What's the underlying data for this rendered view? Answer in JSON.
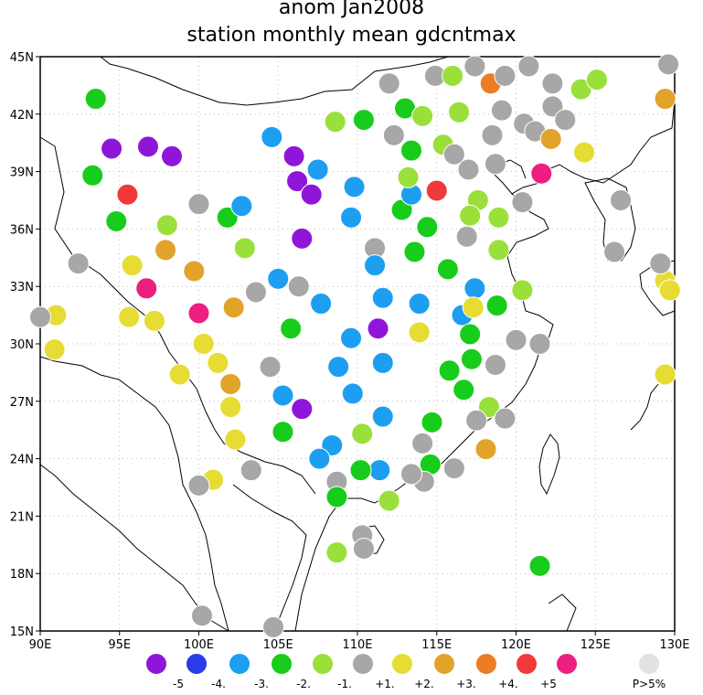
{
  "title": "anom Jan2008",
  "subtitle": "station monthly mean gdcntmax",
  "map": {
    "lon_range": [
      90,
      130
    ],
    "lat_range": [
      15,
      45
    ],
    "x_ticks": [
      {
        "value": 90,
        "label": "90E"
      },
      {
        "value": 95,
        "label": "95E"
      },
      {
        "value": 100,
        "label": "100E"
      },
      {
        "value": 105,
        "label": "105E"
      },
      {
        "value": 110,
        "label": "110E"
      },
      {
        "value": 115,
        "label": "115E"
      },
      {
        "value": 120,
        "label": "120E"
      },
      {
        "value": 125,
        "label": "125E"
      },
      {
        "value": 130,
        "label": "130E"
      }
    ],
    "y_ticks": [
      {
        "value": 15,
        "label": "15N"
      },
      {
        "value": 18,
        "label": "18N"
      },
      {
        "value": 21,
        "label": "21N"
      },
      {
        "value": 24,
        "label": "24N"
      },
      {
        "value": 27,
        "label": "27N"
      },
      {
        "value": 30,
        "label": "30N"
      },
      {
        "value": 33,
        "label": "33N"
      },
      {
        "value": 36,
        "label": "36N"
      },
      {
        "value": 39,
        "label": "39N"
      },
      {
        "value": 42,
        "label": "42N"
      },
      {
        "value": 45,
        "label": "45N"
      }
    ],
    "grid": "dotted"
  },
  "legend": [
    {
      "key": "m5",
      "color": "#8f16d8",
      "label": "-5"
    },
    {
      "key": "m4",
      "color": "#2a3be8",
      "label": "-4."
    },
    {
      "key": "m3",
      "color": "#1e9ef0",
      "label": "-3."
    },
    {
      "key": "m2",
      "color": "#18cc1c",
      "label": "-2."
    },
    {
      "key": "m1",
      "color": "#99e03a",
      "label": "-1."
    },
    {
      "key": "gr",
      "color": "#a7a7a7",
      "label": "+1."
    },
    {
      "key": "p2",
      "color": "#e6dc33",
      "label": "+2."
    },
    {
      "key": "p3",
      "color": "#e2a32b",
      "label": "+3."
    },
    {
      "key": "p4",
      "color": "#ec7d24",
      "label": "+4."
    },
    {
      "key": "p5",
      "color": "#f0393a",
      "label": "+5"
    },
    {
      "key": "p6",
      "color": "#ec1f7f",
      "label": ""
    },
    {
      "key": "ns",
      "color": "#e2e2e2",
      "label": "P>5%"
    }
  ],
  "stations": [
    {
      "lon": 93.5,
      "lat": 42.8,
      "c": "m2"
    },
    {
      "lon": 94.5,
      "lat": 40.2,
      "c": "m5"
    },
    {
      "lon": 96.8,
      "lat": 40.3,
      "c": "m5"
    },
    {
      "lon": 98.3,
      "lat": 39.8,
      "c": "m5"
    },
    {
      "lon": 93.3,
      "lat": 38.8,
      "c": "m2"
    },
    {
      "lon": 95.5,
      "lat": 37.8,
      "c": "p5"
    },
    {
      "lon": 94.8,
      "lat": 36.4,
      "c": "m2"
    },
    {
      "lon": 98.0,
      "lat": 36.2,
      "c": "m1"
    },
    {
      "lon": 100.0,
      "lat": 37.3,
      "c": "gr"
    },
    {
      "lon": 101.8,
      "lat": 36.6,
      "c": "m2"
    },
    {
      "lon": 102.7,
      "lat": 37.2,
      "c": "m3"
    },
    {
      "lon": 97.9,
      "lat": 34.9,
      "c": "p3"
    },
    {
      "lon": 92.4,
      "lat": 34.2,
      "c": "gr"
    },
    {
      "lon": 95.8,
      "lat": 34.1,
      "c": "p2"
    },
    {
      "lon": 99.7,
      "lat": 33.8,
      "c": "p3"
    },
    {
      "lon": 102.9,
      "lat": 35.0,
      "c": "m1"
    },
    {
      "lon": 96.7,
      "lat": 32.9,
      "c": "p6"
    },
    {
      "lon": 91.0,
      "lat": 31.5,
      "c": "p2"
    },
    {
      "lon": 90.0,
      "lat": 31.4,
      "c": "gr"
    },
    {
      "lon": 95.6,
      "lat": 31.4,
      "c": "p2"
    },
    {
      "lon": 97.2,
      "lat": 31.2,
      "c": "p2"
    },
    {
      "lon": 100.0,
      "lat": 31.6,
      "c": "p6"
    },
    {
      "lon": 102.2,
      "lat": 31.9,
      "c": "p3"
    },
    {
      "lon": 103.6,
      "lat": 32.7,
      "c": "gr"
    },
    {
      "lon": 105.0,
      "lat": 33.4,
      "c": "m3"
    },
    {
      "lon": 106.3,
      "lat": 33.0,
      "c": "gr"
    },
    {
      "lon": 90.9,
      "lat": 29.7,
      "c": "p2"
    },
    {
      "lon": 100.3,
      "lat": 30.0,
      "c": "p2"
    },
    {
      "lon": 98.8,
      "lat": 28.4,
      "c": "p2"
    },
    {
      "lon": 101.2,
      "lat": 29.0,
      "c": "p2"
    },
    {
      "lon": 102.0,
      "lat": 27.9,
      "c": "p3"
    },
    {
      "lon": 102.0,
      "lat": 26.7,
      "c": "p2"
    },
    {
      "lon": 102.3,
      "lat": 25.0,
      "c": "p2"
    },
    {
      "lon": 104.5,
      "lat": 28.8,
      "c": "gr"
    },
    {
      "lon": 105.3,
      "lat": 27.3,
      "c": "m3"
    },
    {
      "lon": 106.5,
      "lat": 26.6,
      "c": "m5"
    },
    {
      "lon": 105.3,
      "lat": 25.4,
      "c": "m2"
    },
    {
      "lon": 105.8,
      "lat": 30.8,
      "c": "m2"
    },
    {
      "lon": 107.7,
      "lat": 32.1,
      "c": "m3"
    },
    {
      "lon": 106.5,
      "lat": 35.5,
      "c": "m5"
    },
    {
      "lon": 104.6,
      "lat": 40.8,
      "c": "m3"
    },
    {
      "lon": 106.0,
      "lat": 39.8,
      "c": "m5"
    },
    {
      "lon": 106.2,
      "lat": 38.5,
      "c": "m5"
    },
    {
      "lon": 107.1,
      "lat": 37.8,
      "c": "m5"
    },
    {
      "lon": 107.5,
      "lat": 39.1,
      "c": "m3"
    },
    {
      "lon": 108.6,
      "lat": 41.6,
      "c": "m1"
    },
    {
      "lon": 110.4,
      "lat": 41.7,
      "c": "m2"
    },
    {
      "lon": 109.8,
      "lat": 38.2,
      "c": "m3"
    },
    {
      "lon": 109.6,
      "lat": 36.6,
      "c": "m3"
    },
    {
      "lon": 111.1,
      "lat": 35.0,
      "c": "gr"
    },
    {
      "lon": 111.1,
      "lat": 34.1,
      "c": "m3"
    },
    {
      "lon": 111.6,
      "lat": 32.4,
      "c": "m3"
    },
    {
      "lon": 111.3,
      "lat": 30.8,
      "c": "m5"
    },
    {
      "lon": 109.6,
      "lat": 30.3,
      "c": "m3"
    },
    {
      "lon": 108.8,
      "lat": 28.8,
      "c": "m3"
    },
    {
      "lon": 109.7,
      "lat": 27.4,
      "c": "m3"
    },
    {
      "lon": 110.3,
      "lat": 25.3,
      "c": "m1"
    },
    {
      "lon": 108.4,
      "lat": 24.7,
      "c": "m3"
    },
    {
      "lon": 107.6,
      "lat": 24.0,
      "c": "m3"
    },
    {
      "lon": 111.6,
      "lat": 26.2,
      "c": "m3"
    },
    {
      "lon": 111.6,
      "lat": 29.0,
      "c": "m3"
    },
    {
      "lon": 113.9,
      "lat": 30.6,
      "c": "p2"
    },
    {
      "lon": 113.9,
      "lat": 32.1,
      "c": "m3"
    },
    {
      "lon": 113.6,
      "lat": 34.8,
      "c": "m2"
    },
    {
      "lon": 114.4,
      "lat": 36.1,
      "c": "m2"
    },
    {
      "lon": 112.8,
      "lat": 37.0,
      "c": "m2"
    },
    {
      "lon": 113.4,
      "lat": 37.8,
      "c": "m3"
    },
    {
      "lon": 113.2,
      "lat": 38.7,
      "c": "m1"
    },
    {
      "lon": 113.4,
      "lat": 40.1,
      "c": "m2"
    },
    {
      "lon": 112.3,
      "lat": 40.9,
      "c": "gr"
    },
    {
      "lon": 113.0,
      "lat": 42.3,
      "c": "m2"
    },
    {
      "lon": 114.1,
      "lat": 41.9,
      "c": "m1"
    },
    {
      "lon": 112.0,
      "lat": 43.6,
      "c": "gr"
    },
    {
      "lon": 114.9,
      "lat": 44.0,
      "c": "gr"
    },
    {
      "lon": 116.0,
      "lat": 44.0,
      "c": "m1"
    },
    {
      "lon": 117.4,
      "lat": 44.5,
      "c": "gr"
    },
    {
      "lon": 118.4,
      "lat": 43.6,
      "c": "p4"
    },
    {
      "lon": 119.3,
      "lat": 44.0,
      "c": "gr"
    },
    {
      "lon": 120.8,
      "lat": 44.5,
      "c": "gr"
    },
    {
      "lon": 122.3,
      "lat": 43.6,
      "c": "gr"
    },
    {
      "lon": 124.1,
      "lat": 43.3,
      "c": "m1"
    },
    {
      "lon": 125.1,
      "lat": 43.8,
      "c": "m1"
    },
    {
      "lon": 129.6,
      "lat": 44.6,
      "c": "gr"
    },
    {
      "lon": 129.4,
      "lat": 42.8,
      "c": "p3"
    },
    {
      "lon": 122.3,
      "lat": 42.4,
      "c": "gr"
    },
    {
      "lon": 123.1,
      "lat": 41.7,
      "c": "gr"
    },
    {
      "lon": 120.5,
      "lat": 41.5,
      "c": "gr"
    },
    {
      "lon": 121.2,
      "lat": 41.1,
      "c": "gr"
    },
    {
      "lon": 122.2,
      "lat": 40.7,
      "c": "p3"
    },
    {
      "lon": 119.1,
      "lat": 42.2,
      "c": "gr"
    },
    {
      "lon": 116.4,
      "lat": 42.1,
      "c": "m1"
    },
    {
      "lon": 118.5,
      "lat": 40.9,
      "c": "gr"
    },
    {
      "lon": 115.4,
      "lat": 40.4,
      "c": "m1"
    },
    {
      "lon": 116.1,
      "lat": 39.9,
      "c": "gr"
    },
    {
      "lon": 117.0,
      "lat": 39.1,
      "c": "gr"
    },
    {
      "lon": 118.7,
      "lat": 39.4,
      "c": "gr"
    },
    {
      "lon": 121.6,
      "lat": 38.9,
      "c": "p6"
    },
    {
      "lon": 124.3,
      "lat": 40.0,
      "c": "p2"
    },
    {
      "lon": 115.0,
      "lat": 38.0,
      "c": "p5"
    },
    {
      "lon": 117.6,
      "lat": 37.5,
      "c": "m1"
    },
    {
      "lon": 117.1,
      "lat": 36.7,
      "c": "m1"
    },
    {
      "lon": 118.9,
      "lat": 36.6,
      "c": "m1"
    },
    {
      "lon": 120.4,
      "lat": 37.4,
      "c": "gr"
    },
    {
      "lon": 126.6,
      "lat": 37.5,
      "c": "gr"
    },
    {
      "lon": 116.9,
      "lat": 35.6,
      "c": "gr"
    },
    {
      "lon": 118.9,
      "lat": 34.9,
      "c": "m1"
    },
    {
      "lon": 115.7,
      "lat": 33.9,
      "c": "m2"
    },
    {
      "lon": 117.4,
      "lat": 32.9,
      "c": "m3"
    },
    {
      "lon": 116.6,
      "lat": 31.5,
      "c": "m3"
    },
    {
      "lon": 117.3,
      "lat": 31.9,
      "c": "p2"
    },
    {
      "lon": 118.8,
      "lat": 32.0,
      "c": "m2"
    },
    {
      "lon": 120.4,
      "lat": 32.8,
      "c": "m1"
    },
    {
      "lon": 117.1,
      "lat": 30.5,
      "c": "m2"
    },
    {
      "lon": 120.0,
      "lat": 30.2,
      "c": "gr"
    },
    {
      "lon": 121.5,
      "lat": 30.0,
      "c": "gr"
    },
    {
      "lon": 117.2,
      "lat": 29.2,
      "c": "m2"
    },
    {
      "lon": 115.8,
      "lat": 28.6,
      "c": "m2"
    },
    {
      "lon": 116.7,
      "lat": 27.6,
      "c": "m2"
    },
    {
      "lon": 118.7,
      "lat": 28.9,
      "c": "gr"
    },
    {
      "lon": 118.3,
      "lat": 26.7,
      "c": "m1"
    },
    {
      "lon": 117.5,
      "lat": 26.0,
      "c": "gr"
    },
    {
      "lon": 119.3,
      "lat": 26.1,
      "c": "gr"
    },
    {
      "lon": 118.1,
      "lat": 24.5,
      "c": "p3"
    },
    {
      "lon": 116.1,
      "lat": 23.5,
      "c": "gr"
    },
    {
      "lon": 114.7,
      "lat": 25.9,
      "c": "m2"
    },
    {
      "lon": 114.1,
      "lat": 24.8,
      "c": "gr"
    },
    {
      "lon": 114.6,
      "lat": 23.7,
      "c": "m2"
    },
    {
      "lon": 114.2,
      "lat": 22.8,
      "c": "gr"
    },
    {
      "lon": 113.4,
      "lat": 23.2,
      "c": "gr"
    },
    {
      "lon": 111.4,
      "lat": 23.4,
      "c": "m3"
    },
    {
      "lon": 110.2,
      "lat": 23.4,
      "c": "m2"
    },
    {
      "lon": 108.7,
      "lat": 22.8,
      "c": "gr"
    },
    {
      "lon": 108.7,
      "lat": 22.0,
      "c": "m2"
    },
    {
      "lon": 112.0,
      "lat": 21.8,
      "c": "m1"
    },
    {
      "lon": 110.3,
      "lat": 20.0,
      "c": "gr"
    },
    {
      "lon": 110.4,
      "lat": 19.3,
      "c": "gr"
    },
    {
      "lon": 108.7,
      "lat": 19.1,
      "c": "m1"
    },
    {
      "lon": 103.3,
      "lat": 23.4,
      "c": "gr"
    },
    {
      "lon": 100.9,
      "lat": 22.9,
      "c": "p2"
    },
    {
      "lon": 100.0,
      "lat": 22.6,
      "c": "gr"
    },
    {
      "lon": 100.2,
      "lat": 15.8,
      "c": "gr"
    },
    {
      "lon": 104.7,
      "lat": 15.2,
      "c": "gr"
    },
    {
      "lon": 121.5,
      "lat": 18.4,
      "c": "m2"
    },
    {
      "lon": 129.4,
      "lat": 28.4,
      "c": "p2"
    },
    {
      "lon": 129.4,
      "lat": 33.3,
      "c": "p2"
    },
    {
      "lon": 129.7,
      "lat": 32.8,
      "c": "p2"
    },
    {
      "lon": 129.1,
      "lat": 34.2,
      "c": "gr"
    },
    {
      "lon": 126.2,
      "lat": 34.8,
      "c": "gr"
    }
  ]
}
